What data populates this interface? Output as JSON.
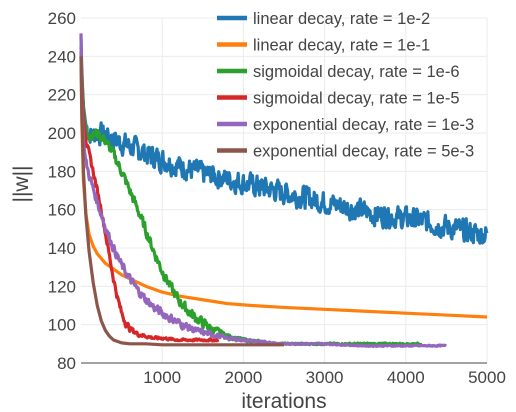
{
  "chart_data": {
    "type": "line",
    "title": "",
    "xlabel": "iterations",
    "ylabel": "||w||",
    "xlim": [
      0,
      5000
    ],
    "ylim": [
      80,
      260
    ],
    "xticks": [
      1000,
      2000,
      3000,
      4000,
      5000
    ],
    "yticks": [
      80,
      100,
      120,
      140,
      160,
      180,
      200,
      220,
      240,
      260
    ],
    "grid": true,
    "legend_position": "top-right",
    "series": [
      {
        "name": "linear decay, rate = 1e-2",
        "color": "#1f77b4",
        "noise": 4,
        "x": [
          0,
          10,
          30,
          60,
          100,
          150,
          200,
          300,
          400,
          600,
          800,
          1000,
          1200,
          1500,
          1800,
          2100,
          2400,
          2700,
          3000,
          3300,
          3600,
          3900,
          4200,
          4500,
          4800,
          5000
        ],
        "y": [
          250,
          232,
          214,
          204,
          200,
          199,
          200,
          199,
          197,
          193,
          189,
          186,
          183,
          179,
          176,
          173,
          170,
          167,
          164,
          161,
          158,
          156,
          154,
          151,
          148,
          147
        ]
      },
      {
        "name": "linear decay, rate = 1e-1",
        "color": "#ff7f0e",
        "noise": 0,
        "x": [
          0,
          10,
          30,
          60,
          100,
          150,
          200,
          300,
          400,
          500,
          600,
          800,
          1000,
          1200,
          1500,
          1800,
          2100,
          2500,
          3000,
          3500,
          4000,
          4500,
          5000
        ],
        "y": [
          240,
          205,
          175,
          158,
          147,
          141,
          137,
          132,
          129,
          126,
          124,
          120,
          117,
          115,
          113,
          111,
          110,
          109,
          108,
          107,
          106,
          105,
          104
        ]
      },
      {
        "name": "sigmoidal decay, rate = 1e-6",
        "color": "#2ca02c",
        "noise": 1.8,
        "x": [
          0,
          10,
          30,
          60,
          100,
          150,
          200,
          250,
          300,
          400,
          500,
          600,
          700,
          800,
          900,
          1000,
          1100,
          1200,
          1300,
          1400,
          1500,
          1600,
          1700,
          1800,
          1900,
          2000,
          2200,
          2400,
          2600,
          3000,
          3500,
          4000,
          4200
        ],
        "y": [
          245,
          230,
          212,
          202,
          199,
          199,
          200,
          198,
          196,
          189,
          180,
          170,
          160,
          149,
          138,
          128,
          120,
          113,
          108,
          104,
          101,
          98,
          96,
          94,
          93,
          92,
          91,
          90,
          90,
          90,
          90,
          90,
          90
        ]
      },
      {
        "name": "sigmoidal decay, rate = 1e-5",
        "color": "#d62728",
        "noise": 1.2,
        "x": [
          0,
          10,
          30,
          60,
          100,
          150,
          200,
          250,
          300,
          350,
          400,
          450,
          500,
          550,
          600,
          700,
          800,
          900,
          1000,
          1200,
          1400,
          1600,
          1700
        ],
        "y": [
          242,
          226,
          207,
          196,
          189,
          180,
          170,
          160,
          148,
          136,
          124,
          114,
          106,
          101,
          98,
          95,
          94,
          93,
          93,
          92,
          92,
          92,
          92
        ]
      },
      {
        "name": "exponential decay, rate = 1e-3",
        "color": "#9467bd",
        "noise": 1.5,
        "x": [
          0,
          10,
          30,
          60,
          100,
          150,
          200,
          300,
          400,
          500,
          600,
          700,
          800,
          900,
          1000,
          1200,
          1400,
          1600,
          1800,
          2000,
          2200,
          2500,
          3000,
          3500,
          4000,
          4500
        ],
        "y": [
          252,
          218,
          195,
          185,
          178,
          171,
          164,
          151,
          140,
          131,
          124,
          118,
          113,
          109,
          106,
          101,
          97,
          95,
          93,
          92,
          91,
          90,
          90,
          89,
          89,
          89
        ]
      },
      {
        "name": "exponential decay, rate = 5e-3",
        "color": "#8c564b",
        "noise": 0,
        "x": [
          0,
          10,
          30,
          60,
          100,
          150,
          200,
          250,
          300,
          350,
          400,
          500,
          600,
          700,
          800,
          1000,
          1500,
          2000,
          2500
        ],
        "y": [
          240,
          212,
          180,
          157,
          138,
          122,
          110,
          102,
          97,
          94,
          92,
          90.5,
          90,
          90,
          90,
          89.5,
          89.5,
          89.5,
          89.5
        ]
      }
    ]
  }
}
